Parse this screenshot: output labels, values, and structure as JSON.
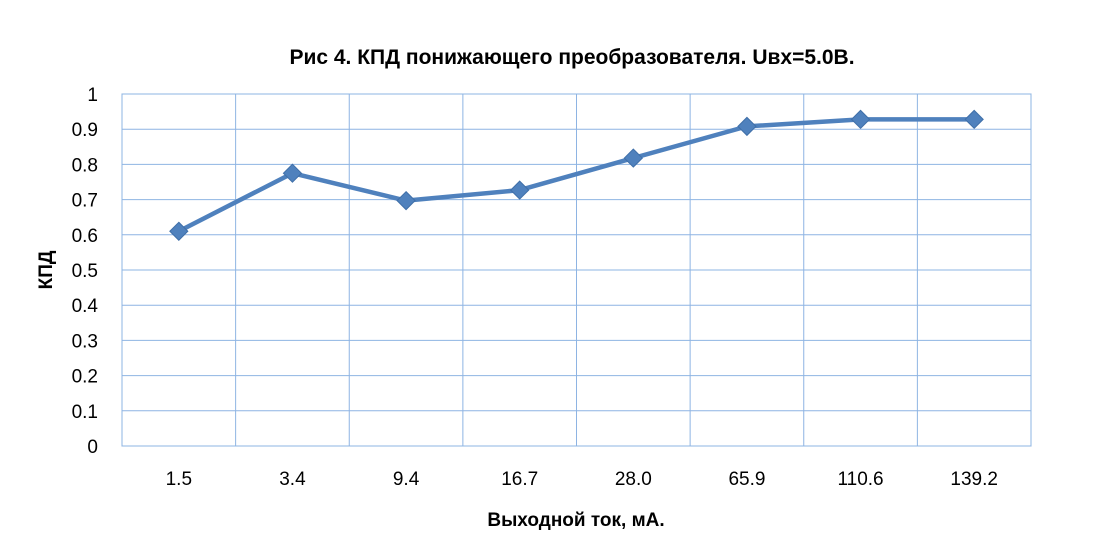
{
  "chart_data": {
    "type": "line",
    "title": "Рис 4. КПД понижающего преобразователя. Uвх=5.0В.",
    "xlabel": "Выходной ток, мА.",
    "ylabel": "КПД",
    "categories": [
      "1.5",
      "3.4",
      "9.4",
      "16.7",
      "28.0",
      "65.9",
      "110.6",
      "139.2"
    ],
    "series": [
      {
        "values": [
          0.61,
          0.775,
          0.697,
          0.727,
          0.818,
          0.908,
          0.928,
          0.928
        ]
      }
    ],
    "ylim": [
      0,
      1
    ],
    "yticks": [
      "0",
      "0.1",
      "0.2",
      "0.3",
      "0.4",
      "0.5",
      "0.6",
      "0.7",
      "0.8",
      "0.9",
      "1"
    ],
    "grid": true,
    "legend": "none",
    "marker": "diamond",
    "colors": {
      "series": "#4F81BD",
      "grid": "#8EB4E3",
      "frame": "#86A9D6"
    }
  }
}
